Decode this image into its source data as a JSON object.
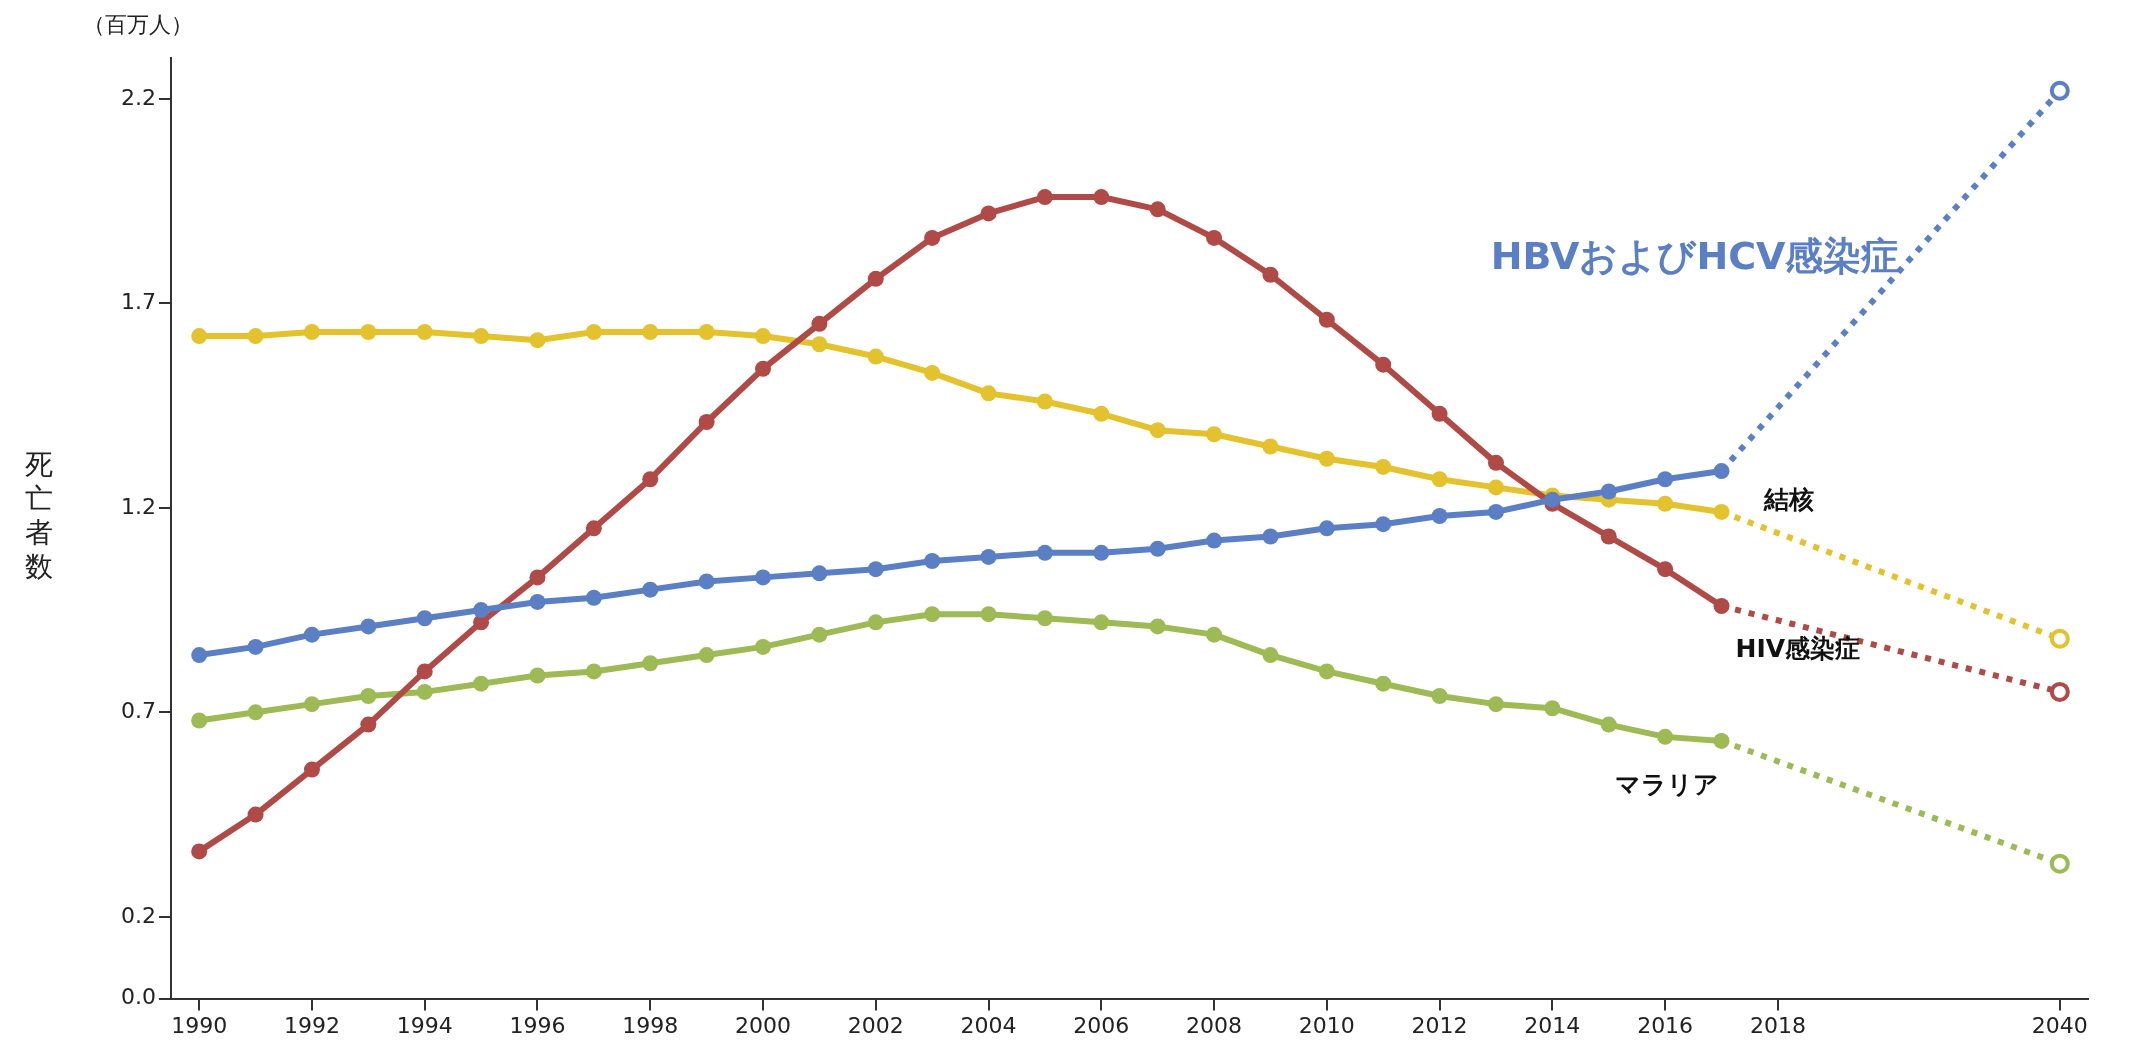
{
  "chart_data": {
    "type": "line",
    "ylabel": "死亡者数",
    "annotations": [
      "（百万人）"
    ],
    "categories": [
      "1990",
      null,
      "1992",
      null,
      "1994",
      null,
      "1996",
      null,
      "1998",
      null,
      "2000",
      null,
      "2002",
      null,
      "2004",
      null,
      "2006",
      null,
      "2008",
      null,
      "2010",
      null,
      "2012",
      null,
      "2014",
      null,
      "2016",
      null,
      "2018",
      null,
      null,
      null,
      null,
      "2040"
    ],
    "ylim": [
      0,
      2.3
    ],
    "yticks": [
      {
        "value": 0,
        "label": "0.0"
      },
      0.2,
      0.7,
      1.2,
      1.7,
      2.2
    ],
    "grid": false,
    "legend": false,
    "marker": "circle",
    "line_style": "solid",
    "series": [
      {
        "name": "HBVおよびHCV感染症",
        "color": "#5b7fc4",
        "values": [
          0.84,
          0.86,
          0.89,
          0.91,
          0.93,
          0.95,
          0.97,
          0.98,
          1.0,
          1.02,
          1.03,
          1.04,
          1.05,
          1.07,
          1.08,
          1.09,
          1.09,
          1.1,
          1.12,
          1.13,
          1.15,
          1.16,
          1.18,
          1.19,
          1.22,
          1.24,
          1.27,
          1.29,
          null,
          null,
          null,
          null,
          null,
          null
        ]
      },
      {
        "name": "HIV感染症",
        "color": "#b04a46",
        "values": [
          0.36,
          0.45,
          0.56,
          0.67,
          0.8,
          0.92,
          1.03,
          1.15,
          1.27,
          1.41,
          1.54,
          1.65,
          1.76,
          1.86,
          1.92,
          1.96,
          1.96,
          1.93,
          1.86,
          1.77,
          1.66,
          1.55,
          1.43,
          1.31,
          1.21,
          1.13,
          1.05,
          0.96,
          null,
          null,
          null,
          null,
          null,
          null
        ]
      },
      {
        "name": "結核",
        "color": "#e3c22e",
        "values": [
          1.62,
          1.62,
          1.63,
          1.63,
          1.63,
          1.62,
          1.61,
          1.63,
          1.63,
          1.63,
          1.62,
          1.6,
          1.57,
          1.53,
          1.48,
          1.46,
          1.43,
          1.39,
          1.38,
          1.35,
          1.32,
          1.3,
          1.27,
          1.25,
          1.23,
          1.22,
          1.21,
          1.19,
          null,
          null,
          null,
          null,
          null,
          null
        ]
      },
      {
        "name": "マラリア",
        "color": "#9dba55",
        "values": [
          0.68,
          0.7,
          0.72,
          0.74,
          0.75,
          0.77,
          0.79,
          0.8,
          0.82,
          0.84,
          0.86,
          0.89,
          0.92,
          0.94,
          0.94,
          0.93,
          0.92,
          0.91,
          0.89,
          0.84,
          0.8,
          0.77,
          0.74,
          0.72,
          0.71,
          0.67,
          0.64,
          0.63,
          null,
          null,
          null,
          null,
          null,
          null
        ]
      },
      {
        "color": "#5b7fc4",
        "line_style": "dotted",
        "values": [
          null,
          null,
          null,
          null,
          null,
          null,
          null,
          null,
          null,
          null,
          null,
          null,
          null,
          null,
          null,
          null,
          null,
          null,
          null,
          null,
          null,
          null,
          null,
          null,
          null,
          null,
          null,
          1.29,
          null,
          null,
          null,
          null,
          null,
          2.22
        ]
      },
      {
        "color": "#b04a46",
        "line_style": "dotted",
        "values": [
          null,
          null,
          null,
          null,
          null,
          null,
          null,
          null,
          null,
          null,
          null,
          null,
          null,
          null,
          null,
          null,
          null,
          null,
          null,
          null,
          null,
          null,
          null,
          null,
          null,
          null,
          null,
          0.96,
          null,
          null,
          null,
          null,
          null,
          0.75
        ]
      },
      {
        "color": "#e3c22e",
        "line_style": "dotted",
        "values": [
          null,
          null,
          null,
          null,
          null,
          null,
          null,
          null,
          null,
          null,
          null,
          null,
          null,
          null,
          null,
          null,
          null,
          null,
          null,
          null,
          null,
          null,
          null,
          null,
          null,
          null,
          null,
          1.19,
          null,
          null,
          null,
          null,
          null,
          0.88
        ]
      },
      {
        "color": "#9dba55",
        "line_style": "dotted",
        "values": [
          null,
          null,
          null,
          null,
          null,
          null,
          null,
          null,
          null,
          null,
          null,
          null,
          null,
          null,
          null,
          null,
          null,
          null,
          null,
          null,
          null,
          null,
          null,
          null,
          null,
          null,
          null,
          0.63,
          null,
          null,
          null,
          null,
          null,
          0.33
        ]
      }
    ]
  }
}
